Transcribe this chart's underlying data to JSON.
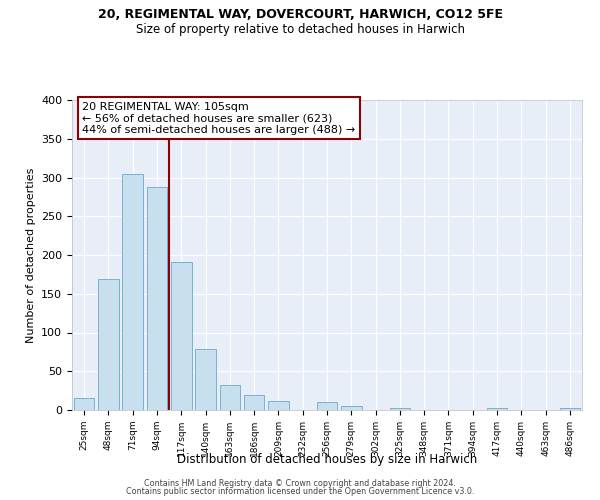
{
  "title1": "20, REGIMENTAL WAY, DOVERCOURT, HARWICH, CO12 5FE",
  "title2": "Size of property relative to detached houses in Harwich",
  "xlabel": "Distribution of detached houses by size in Harwich",
  "ylabel": "Number of detached properties",
  "bar_labels": [
    "25sqm",
    "48sqm",
    "71sqm",
    "94sqm",
    "117sqm",
    "140sqm",
    "163sqm",
    "186sqm",
    "209sqm",
    "232sqm",
    "256sqm",
    "279sqm",
    "302sqm",
    "325sqm",
    "348sqm",
    "371sqm",
    "394sqm",
    "417sqm",
    "440sqm",
    "463sqm",
    "486sqm"
  ],
  "bar_values": [
    16,
    169,
    305,
    288,
    191,
    79,
    32,
    20,
    11,
    0,
    10,
    5,
    0,
    3,
    0,
    0,
    0,
    2,
    0,
    0,
    2
  ],
  "bar_color": "#c8dff0",
  "bar_edge_color": "#7ab0d0",
  "vline_x": 3.5,
  "vline_color": "#8b0000",
  "annotation_title": "20 REGIMENTAL WAY: 105sqm",
  "annotation_line1": "← 56% of detached houses are smaller (623)",
  "annotation_line2": "44% of semi-detached houses are larger (488) →",
  "annotation_box_color": "white",
  "annotation_box_edgecolor": "#8b0000",
  "ylim": [
    0,
    400
  ],
  "yticks": [
    0,
    50,
    100,
    150,
    200,
    250,
    300,
    350,
    400
  ],
  "bg_color": "#e8eef8",
  "grid_color": "white",
  "footer1": "Contains HM Land Registry data © Crown copyright and database right 2024.",
  "footer2": "Contains public sector information licensed under the Open Government Licence v3.0."
}
